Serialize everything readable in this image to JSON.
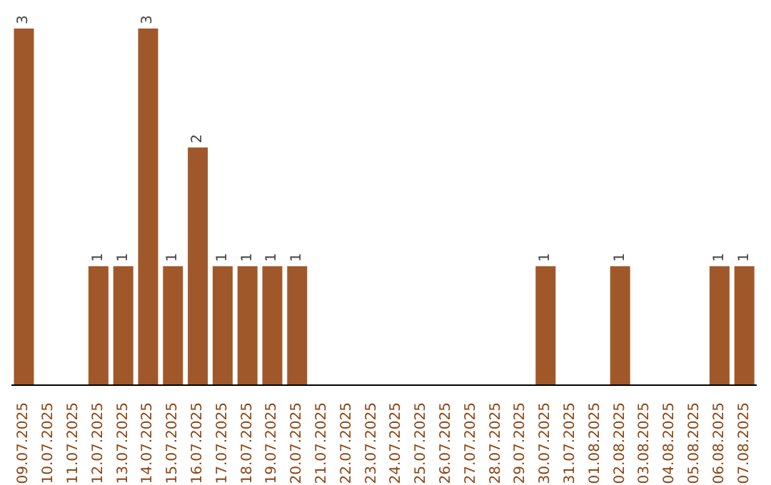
{
  "chart_data": {
    "type": "bar",
    "categories": [
      "09.07.2025",
      "10.07.2025",
      "11.07.2025",
      "12.07.2025",
      "13.07.2025",
      "14.07.2025",
      "15.07.2025",
      "16.07.2025",
      "17.07.2025",
      "18.07.2025",
      "19.07.2025",
      "20.07.2025",
      "21.07.2025",
      "22.07.2025",
      "23.07.2025",
      "24.07.2025",
      "25.07.2025",
      "26.07.2025",
      "27.07.2025",
      "28.07.2025",
      "29.07.2025",
      "30.07.2025",
      "31.07.2025",
      "01.08.2025",
      "02.08.2025",
      "03.08.2025",
      "04.08.2025",
      "05.08.2025",
      "06.08.2025",
      "07.08.2025"
    ],
    "values": [
      3,
      0,
      0,
      1,
      1,
      3,
      1,
      2,
      1,
      1,
      1,
      1,
      0,
      0,
      0,
      0,
      0,
      0,
      0,
      0,
      0,
      1,
      0,
      0,
      1,
      0,
      0,
      0,
      1,
      1
    ],
    "value_labels": [
      "3",
      null,
      null,
      "1",
      "1",
      "3",
      "1",
      "2",
      "1",
      "1",
      "1",
      "1",
      null,
      null,
      null,
      null,
      null,
      null,
      null,
      null,
      null,
      "1",
      null,
      null,
      "1",
      null,
      null,
      null,
      "1",
      "1"
    ],
    "color": "#a0582a"
  }
}
